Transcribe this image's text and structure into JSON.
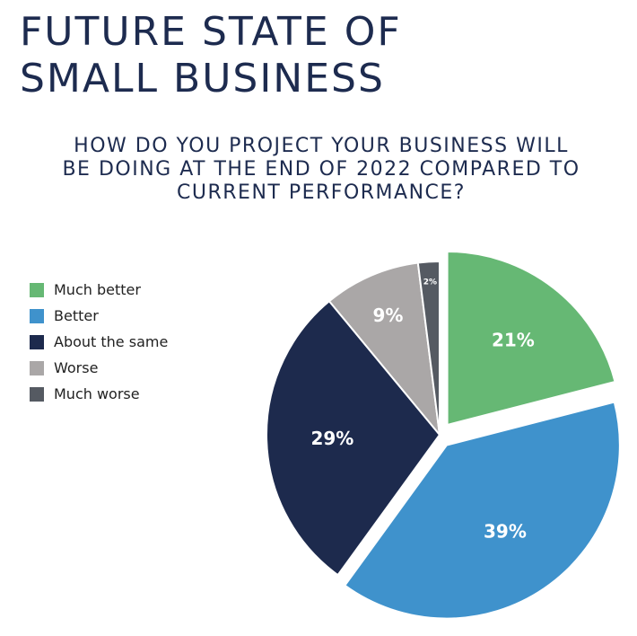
{
  "header": {
    "title_lines": [
      "FUTURE STATE OF",
      "SMALL BUSINESS"
    ]
  },
  "chart_data": {
    "type": "pie",
    "title": "",
    "subtitle_lines": [
      "HOW DO YOU PROJECT YOUR BUSINESS WILL",
      "BE DOING AT THE END OF 2022 COMPARED TO",
      "CURRENT PERFORMANCE?"
    ],
    "categories": [
      "Much better",
      "Better",
      "About the same",
      "Worse",
      "Much worse"
    ],
    "values": [
      21,
      39,
      29,
      9,
      2
    ],
    "value_labels": [
      "21%",
      "39%",
      "29%",
      "9%",
      "2%"
    ],
    "colors": [
      "#66b874",
      "#3f92cc",
      "#1d2a4d",
      "#aaa7a7",
      "#555a62"
    ],
    "exploded": [
      true,
      true,
      false,
      false,
      false
    ],
    "legend": "left",
    "start": "12 o'clock, clockwise"
  }
}
